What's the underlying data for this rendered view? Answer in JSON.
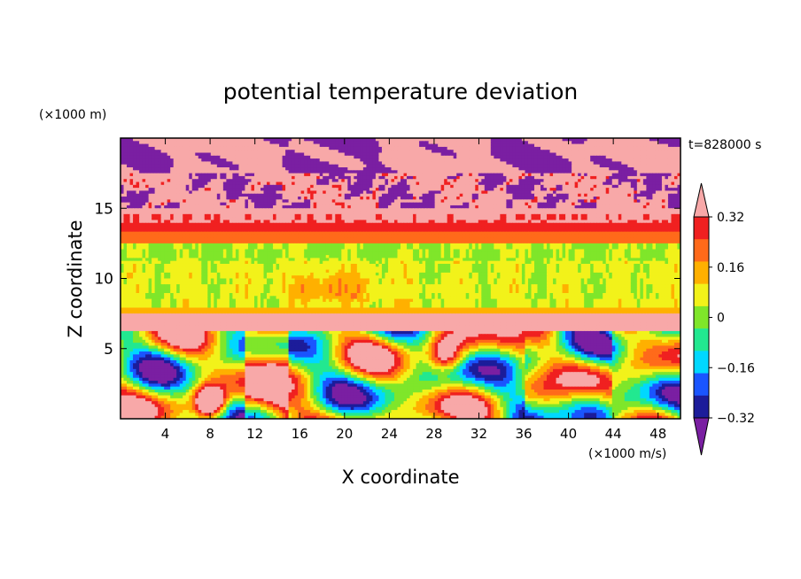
{
  "chart_data": {
    "type": "heatmap",
    "title": "potential temperature deviation",
    "xlabel": "X coordinate",
    "ylabel": "Z coordinate",
    "x_unit": "(×1000 m/s)",
    "y_unit": "(×1000 m)",
    "time_label": "t=828000 s",
    "xlim": [
      0,
      50
    ],
    "ylim": [
      0,
      20
    ],
    "x_ticks": [
      4,
      8,
      12,
      16,
      20,
      24,
      28,
      32,
      36,
      40,
      44,
      48
    ],
    "y_ticks": [
      5,
      10,
      15
    ],
    "colorbar": {
      "labels": [
        "0.32",
        "0.16",
        "0",
        "−0.16",
        "−0.32"
      ],
      "label_values": [
        0.32,
        0.16,
        0,
        -0.16,
        -0.32
      ],
      "levels": [
        -0.4,
        -0.32,
        -0.24,
        -0.16,
        -0.08,
        0,
        0.08,
        0.16,
        0.24,
        0.32,
        0.4
      ],
      "colors": [
        "#7a1fa2",
        "#1c1c9a",
        "#1a55ff",
        "#00d8ff",
        "#22e890",
        "#7fe62a",
        "#f2f21a",
        "#ffb000",
        "#ff6a1a",
        "#f02020",
        "#f8a8a8"
      ],
      "extend": "both"
    },
    "layers": [
      {
        "z_range": [
          17.5,
          20.0
        ],
        "pattern": "patchy",
        "values": [
          0.45,
          -0.45
        ]
      },
      {
        "z_range": [
          15.0,
          17.5
        ],
        "pattern": "turbulent",
        "values": [
          0.45,
          -0.45,
          0.2,
          -0.2
        ]
      },
      {
        "z_range": [
          14.0,
          15.0
        ],
        "pattern": "banded",
        "values": [
          0.45,
          0.38,
          0.3
        ]
      },
      {
        "z_range": [
          12.5,
          14.0
        ],
        "pattern": "banded",
        "values": [
          0.28,
          0.2
        ]
      },
      {
        "z_range": [
          8.0,
          12.5
        ],
        "pattern": "uniform",
        "values": [
          0.02,
          -0.05
        ]
      },
      {
        "z_range": [
          7.5,
          8.0
        ],
        "pattern": "banded",
        "values": [
          0.12
        ]
      },
      {
        "z_range": [
          6.3,
          7.5
        ],
        "pattern": "banded",
        "values": [
          0.45
        ]
      },
      {
        "z_range": [
          0.0,
          6.3
        ],
        "pattern": "eddies",
        "values": [
          -0.45,
          -0.3,
          -0.15,
          0,
          0.15,
          0.3,
          0.45
        ]
      }
    ]
  }
}
